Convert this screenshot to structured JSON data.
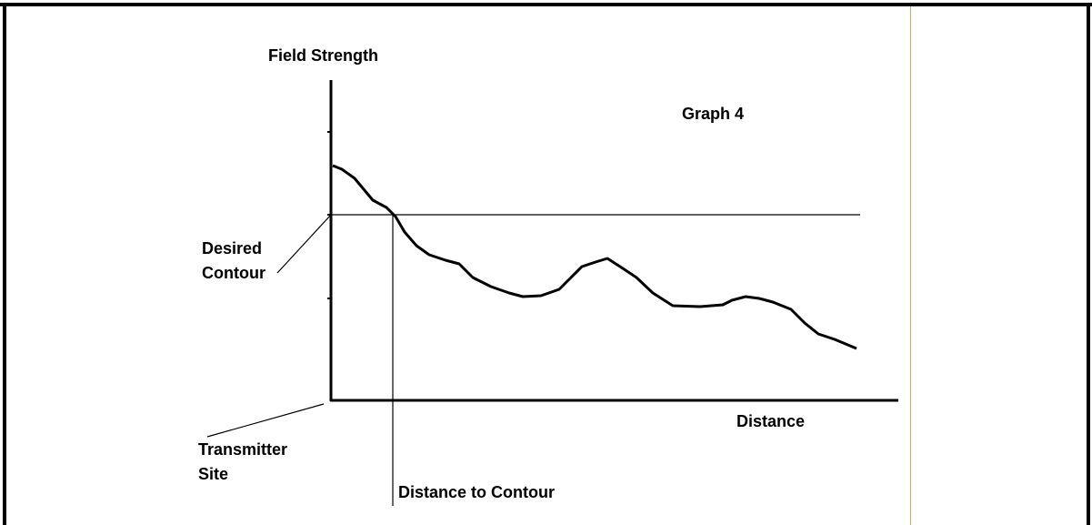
{
  "diagram": {
    "title": "Graph 4",
    "y_axis_label": "Field Strength",
    "x_axis_label": "Distance",
    "contour_label": [
      "Desired",
      "Contour"
    ],
    "origin_label": [
      "Transmitter",
      "Site"
    ],
    "distance_label": "Distance to Contour"
  }
}
